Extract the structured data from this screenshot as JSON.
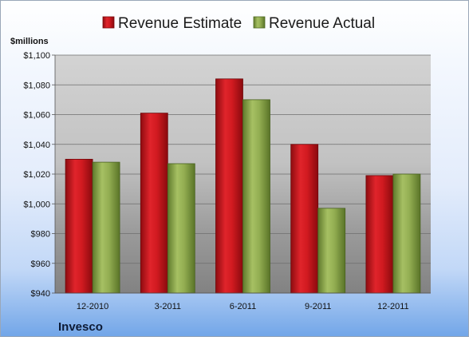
{
  "company": "Invesco",
  "colors": {
    "estimate": "#c0121a",
    "actual": "#8faa4c"
  },
  "chart_data": {
    "type": "bar",
    "categories": [
      "12-2010",
      "3-2011",
      "6-2011",
      "9-2011",
      "12-2011"
    ],
    "series": [
      {
        "name": "Revenue Estimate",
        "values": [
          1030,
          1061,
          1084,
          1040,
          1019
        ]
      },
      {
        "name": "Revenue Actual",
        "values": [
          1028,
          1027,
          1070,
          997,
          1020
        ]
      }
    ],
    "ylabel": "$millions",
    "ylim": [
      940,
      1100
    ],
    "yticks": [
      "$940",
      "$960",
      "$980",
      "$1,000",
      "$1,020",
      "$1,040",
      "$1,060",
      "$1,080",
      "$1,100"
    ],
    "grid": true,
    "legend": "top"
  }
}
